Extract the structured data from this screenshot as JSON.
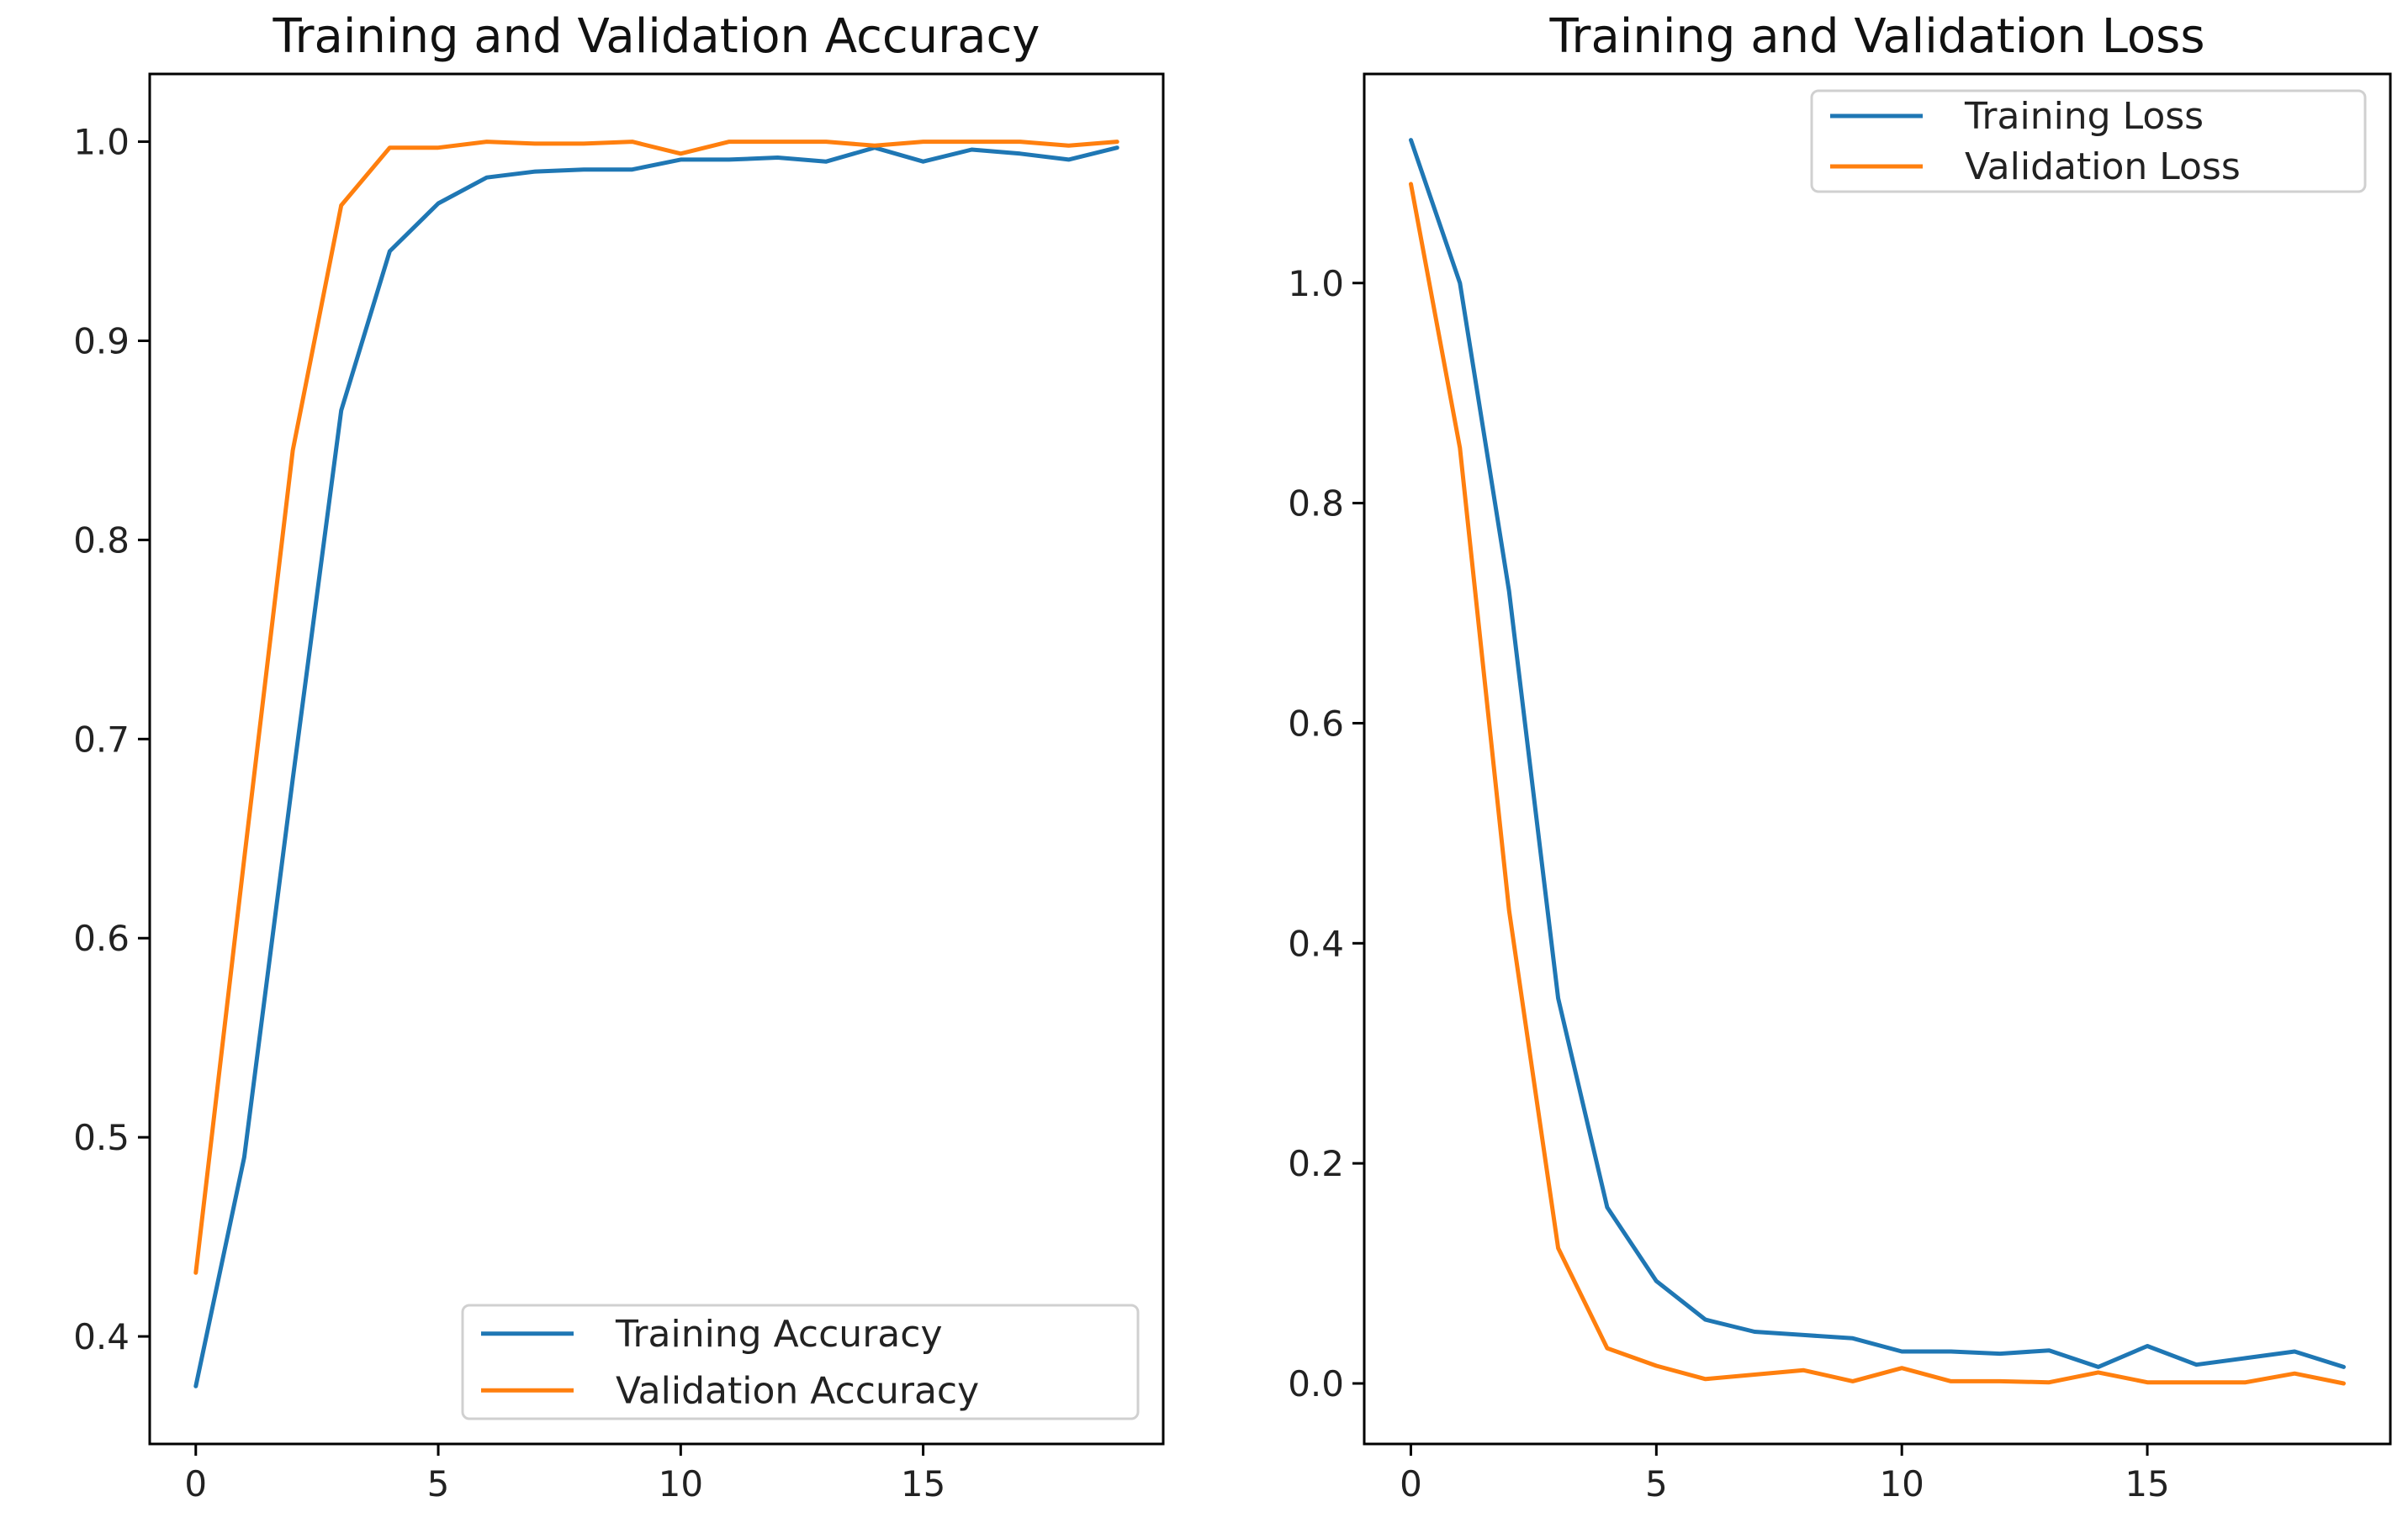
{
  "chart_data": [
    {
      "type": "line",
      "title": "Training and Validation Accuracy",
      "xlabel": "",
      "ylabel": "",
      "xlim": [
        -0.95,
        19.95
      ],
      "ylim": [
        0.346,
        1.034
      ],
      "xticks": [
        0,
        5,
        10,
        15
      ],
      "xtick_labels": [
        "0",
        "5",
        "10",
        "15"
      ],
      "yticks": [
        0.4,
        0.5,
        0.6,
        0.7,
        0.8,
        0.9,
        1.0
      ],
      "ytick_labels": [
        "0.4",
        "0.5",
        "0.6",
        "0.7",
        "0.8",
        "0.9",
        "1.0"
      ],
      "legend_position": "lower-right",
      "series": [
        {
          "name": "Training Accuracy",
          "color": "#1f77b4",
          "x": [
            0,
            1,
            2,
            3,
            4,
            5,
            6,
            7,
            8,
            9,
            10,
            11,
            12,
            13,
            14,
            15,
            16,
            17,
            18,
            19
          ],
          "values": [
            0.375,
            0.49,
            0.68,
            0.865,
            0.945,
            0.969,
            0.982,
            0.985,
            0.986,
            0.986,
            0.991,
            0.991,
            0.992,
            0.99,
            0.997,
            0.99,
            0.996,
            0.994,
            0.991,
            0.997
          ]
        },
        {
          "name": "Validation Accuracy",
          "color": "#ff7f0e",
          "x": [
            0,
            1,
            2,
            3,
            4,
            5,
            6,
            7,
            8,
            9,
            10,
            11,
            12,
            13,
            14,
            15,
            16,
            17,
            18,
            19
          ],
          "values": [
            0.432,
            0.64,
            0.845,
            0.968,
            0.997,
            0.997,
            1.0,
            0.999,
            0.999,
            1.0,
            0.994,
            1.0,
            1.0,
            1.0,
            0.998,
            1.0,
            1.0,
            1.0,
            0.998,
            1.0
          ]
        }
      ]
    },
    {
      "type": "line",
      "title": "Training and Validation Loss",
      "xlabel": "",
      "ylabel": "",
      "xlim": [
        -0.95,
        19.95
      ],
      "ylim": [
        -0.055,
        1.19
      ],
      "xticks": [
        0,
        5,
        10,
        15
      ],
      "xtick_labels": [
        "0",
        "5",
        "10",
        "15"
      ],
      "yticks": [
        0.0,
        0.2,
        0.4,
        0.6,
        0.8,
        1.0
      ],
      "ytick_labels": [
        "0.0",
        "0.2",
        "0.4",
        "0.6",
        "0.8",
        "1.0"
      ],
      "legend_position": "upper-right",
      "series": [
        {
          "name": "Training Loss",
          "color": "#1f77b4",
          "x": [
            0,
            1,
            2,
            3,
            4,
            5,
            6,
            7,
            8,
            9,
            10,
            11,
            12,
            13,
            14,
            15,
            16,
            17,
            18,
            19
          ],
          "values": [
            1.13,
            1.0,
            0.72,
            0.35,
            0.16,
            0.093,
            0.058,
            0.047,
            0.044,
            0.041,
            0.029,
            0.029,
            0.027,
            0.03,
            0.015,
            0.034,
            0.017,
            0.023,
            0.029,
            0.015
          ]
        },
        {
          "name": "Validation Loss",
          "color": "#ff7f0e",
          "x": [
            0,
            1,
            2,
            3,
            4,
            5,
            6,
            7,
            8,
            9,
            10,
            11,
            12,
            13,
            14,
            15,
            16,
            17,
            18,
            19
          ],
          "values": [
            1.09,
            0.85,
            0.43,
            0.123,
            0.032,
            0.016,
            0.004,
            0.008,
            0.012,
            0.002,
            0.014,
            0.002,
            0.002,
            0.001,
            0.01,
            0.001,
            0.001,
            0.001,
            0.009,
            0.0
          ]
        }
      ]
    }
  ]
}
